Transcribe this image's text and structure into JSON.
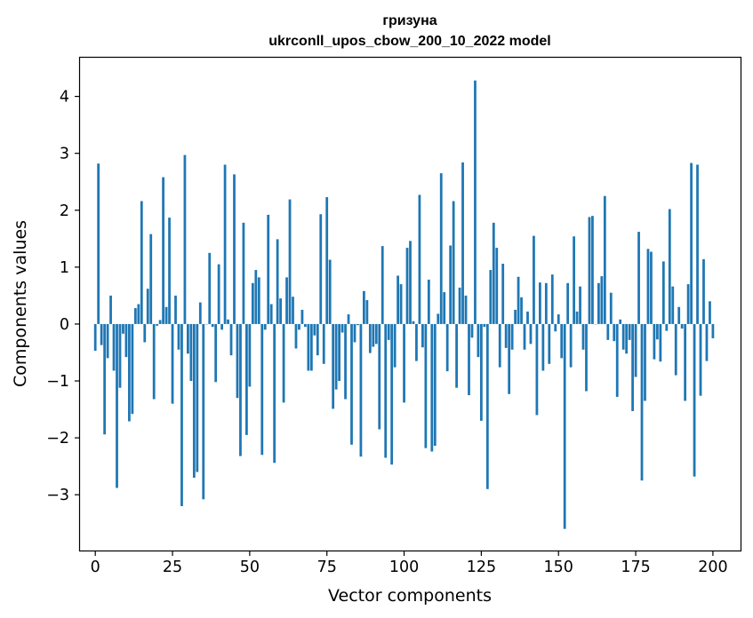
{
  "chart_data": {
    "type": "bar",
    "title_line1": "гризуна",
    "title_line2": "ukrconll_upos_cbow_200_10_2022 model",
    "xlabel": "Vector components",
    "ylabel": "Components values",
    "x_ticks": [
      "0",
      "25",
      "50",
      "75",
      "100",
      "125",
      "150",
      "175",
      "200"
    ],
    "x_tick_values": [
      0,
      25,
      50,
      75,
      100,
      125,
      150,
      175,
      200
    ],
    "y_ticks": [
      "−3",
      "−2",
      "−1",
      "0",
      "1",
      "2",
      "3",
      "4"
    ],
    "y_tick_values": [
      -3,
      -2,
      -1,
      0,
      1,
      2,
      3,
      4
    ],
    "xlim": [
      -4.95,
      208.95
    ],
    "ylim": [
      -3.98,
      4.68
    ],
    "bar_color": "#1f77b4",
    "grid": false,
    "legend": "none",
    "values": [
      -0.47,
      2.82,
      -0.37,
      -1.94,
      -0.6,
      0.5,
      -0.82,
      -2.88,
      -1.12,
      -0.17,
      -0.58,
      -1.71,
      -1.58,
      0.28,
      0.35,
      2.16,
      -0.32,
      0.62,
      1.58,
      -1.32,
      -0.03,
      0.07,
      2.58,
      0.3,
      1.87,
      -1.4,
      0.5,
      -0.45,
      -3.2,
      2.97,
      -0.52,
      -1.0,
      -2.7,
      -2.6,
      0.38,
      -3.08,
      0.0,
      1.25,
      -0.05,
      -1.02,
      1.05,
      -0.1,
      2.8,
      0.08,
      -0.55,
      2.63,
      -1.3,
      -2.32,
      1.78,
      -1.95,
      -1.1,
      0.72,
      0.95,
      0.82,
      -2.3,
      -0.1,
      1.92,
      0.35,
      -2.44,
      1.49,
      0.45,
      -1.38,
      0.82,
      2.19,
      0.48,
      -0.43,
      -0.1,
      0.25,
      -0.05,
      -0.82,
      -0.82,
      -0.2,
      -0.55,
      1.93,
      -0.7,
      2.23,
      1.13,
      -1.49,
      -1.15,
      -1.0,
      -0.15,
      -1.32,
      0.17,
      -2.12,
      -0.32,
      -0.02,
      -2.33,
      0.58,
      0.42,
      -0.51,
      -0.4,
      -0.35,
      -1.85,
      1.37,
      -2.35,
      -0.28,
      -2.47,
      -0.76,
      0.85,
      0.7,
      -1.38,
      1.34,
      1.46,
      0.05,
      -0.65,
      2.27,
      -0.41,
      -2.18,
      0.78,
      -2.24,
      -2.14,
      0.18,
      2.65,
      0.56,
      -0.83,
      1.38,
      2.16,
      -1.12,
      0.64,
      2.84,
      0.5,
      -1.25,
      -0.24,
      4.28,
      -0.58,
      -1.7,
      -0.05,
      -2.9,
      0.95,
      1.78,
      1.34,
      -0.76,
      1.06,
      -0.42,
      -1.23,
      -0.45,
      0.25,
      0.83,
      0.47,
      -0.45,
      0.22,
      -0.35,
      1.55,
      -1.6,
      0.73,
      -0.82,
      0.72,
      -0.7,
      0.87,
      -0.13,
      0.17,
      -0.6,
      -3.6,
      0.72,
      -0.76,
      1.54,
      0.22,
      0.66,
      -0.45,
      -1.18,
      1.88,
      1.9,
      0.0,
      0.72,
      0.84,
      2.25,
      -0.28,
      0.55,
      -0.3,
      -1.28,
      0.08,
      -0.45,
      -0.52,
      -0.28,
      -1.53,
      -0.93,
      1.62,
      -2.75,
      -1.35,
      1.32,
      1.27,
      -0.62,
      -0.27,
      -0.66,
      1.1,
      -0.12,
      2.02,
      0.66,
      -0.9,
      0.3,
      -0.08,
      -1.35,
      0.7,
      2.83,
      -2.68,
      2.8,
      -1.26,
      1.14,
      -0.65,
      0.4,
      -0.25
    ]
  }
}
